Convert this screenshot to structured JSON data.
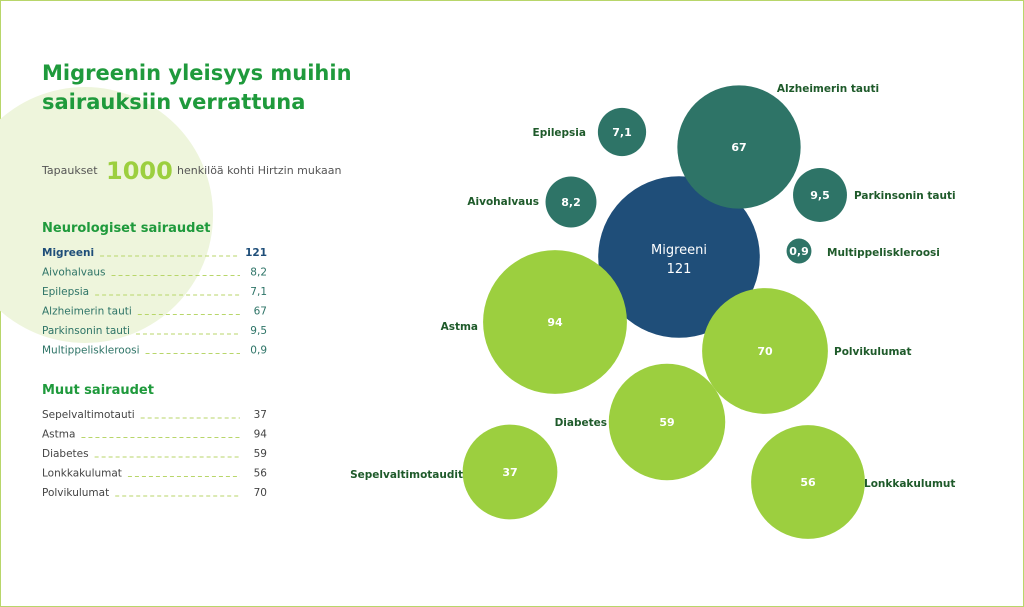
{
  "header": {
    "title_lines": [
      "Migreenin yleisyys muihin",
      "sairauksiin verrattuna"
    ],
    "subtitle_before": "Tapaukset",
    "subtitle_number": "1000",
    "subtitle_after": "henkilöä kohti Hirtzin mukaan"
  },
  "lists": [
    {
      "title": "Neurologiset sairaudet",
      "items": [
        {
          "name": "Migreeni",
          "value": 121
        },
        {
          "name": "Aivohalvaus",
          "value": 8.2,
          "label": "8,2"
        },
        {
          "name": "Epilepsia",
          "value": 7.1,
          "label": "7,1"
        },
        {
          "name": "Alzheimerin tauti",
          "value": 67
        },
        {
          "name": "Parkinsonin tauti",
          "value": 9.5,
          "label": "9,5"
        },
        {
          "name": "Multippeliskleroosi",
          "value": 0.9,
          "label": "0,9"
        }
      ]
    },
    {
      "title": "Muut sairaudet",
      "items": [
        {
          "name": "Sepelvaltimotauti",
          "value": 37
        },
        {
          "name": "Astma",
          "value": 94
        },
        {
          "name": "Diabetes",
          "value": 59
        },
        {
          "name": "Lonkkakulumat",
          "value": 56
        },
        {
          "name": "Polvikulumat",
          "value": 70
        }
      ]
    }
  ],
  "chart_data": {
    "type": "bubble",
    "series": [
      {
        "name": "Migreeni",
        "value": 121,
        "color": "#1f4e79"
      },
      {
        "name": "Alzheimerin tauti",
        "value": 67,
        "color": "#2e7467"
      },
      {
        "name": "Epilepsia",
        "value": 7.1,
        "label": "7,1",
        "color": "#2e7467"
      },
      {
        "name": "Aivohalvaus",
        "value": 8.2,
        "label": "8,2",
        "color": "#2e7467"
      },
      {
        "name": "Parkinsonin tauti",
        "value": 9.5,
        "label": "9,5",
        "color": "#2e7467"
      },
      {
        "name": "Multippeliskleroosi",
        "value": 0.9,
        "label": "0,9",
        "color": "#2e7467"
      },
      {
        "name": "Astma",
        "value": 94,
        "color": "#9ccf3f"
      },
      {
        "name": "Polvikulumat",
        "value": 70,
        "color": "#9ccf3f"
      },
      {
        "name": "Diabetes",
        "value": 59,
        "color": "#9ccf3f"
      },
      {
        "name": "Sepelvaltimotaudit",
        "value": 37,
        "color": "#9ccf3f"
      },
      {
        "name": "Lonkkakulumut",
        "value": 56,
        "color": "#9ccf3f"
      }
    ]
  }
}
